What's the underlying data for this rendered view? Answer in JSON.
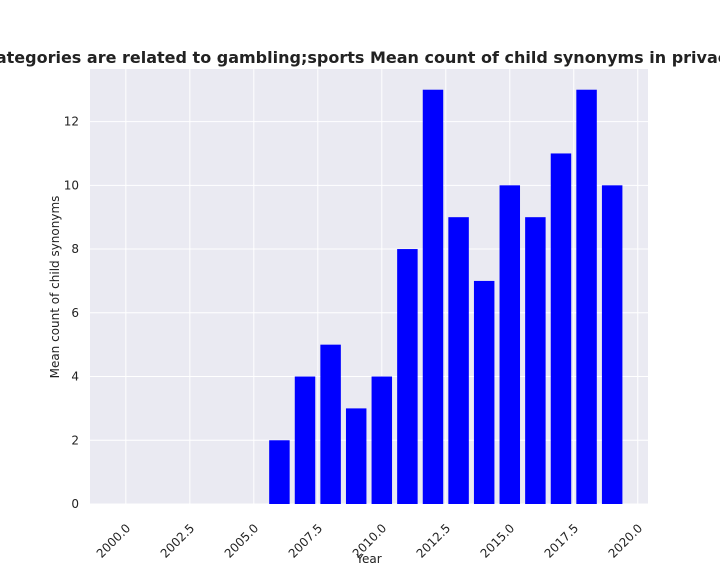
{
  "chart_data": {
    "type": "bar",
    "title": "Which domain categories are related to gambling;sports Mean count of child synonyms in privacy policies by year",
    "xlabel": "Year",
    "ylabel": "Mean count of child synonyms",
    "x": [
      2006,
      2007,
      2008,
      2009,
      2010,
      2011,
      2012,
      2013,
      2014,
      2015,
      2016,
      2017,
      2018,
      2019
    ],
    "values": [
      2,
      4,
      5,
      3,
      4,
      8,
      13,
      9,
      7,
      10,
      9,
      11,
      13,
      10
    ],
    "xlim": [
      1998.6,
      2020.4
    ],
    "ylim": [
      0,
      13.65
    ],
    "xticks": [
      2000.0,
      2002.5,
      2005.0,
      2007.5,
      2010.0,
      2012.5,
      2015.0,
      2017.5,
      2020.0
    ],
    "xtick_labels": [
      "2000.0",
      "2002.5",
      "2005.0",
      "2007.5",
      "2010.0",
      "2012.5",
      "2015.0",
      "2017.5",
      "2020.0"
    ],
    "yticks": [
      0,
      2,
      4,
      6,
      8,
      10,
      12
    ],
    "ytick_labels": [
      "0",
      "2",
      "4",
      "6",
      "8",
      "10",
      "12"
    ],
    "bar_color": "#0000ff",
    "plot_background": "#eaeaf2",
    "grid_color": "#ffffff",
    "grid": true
  }
}
